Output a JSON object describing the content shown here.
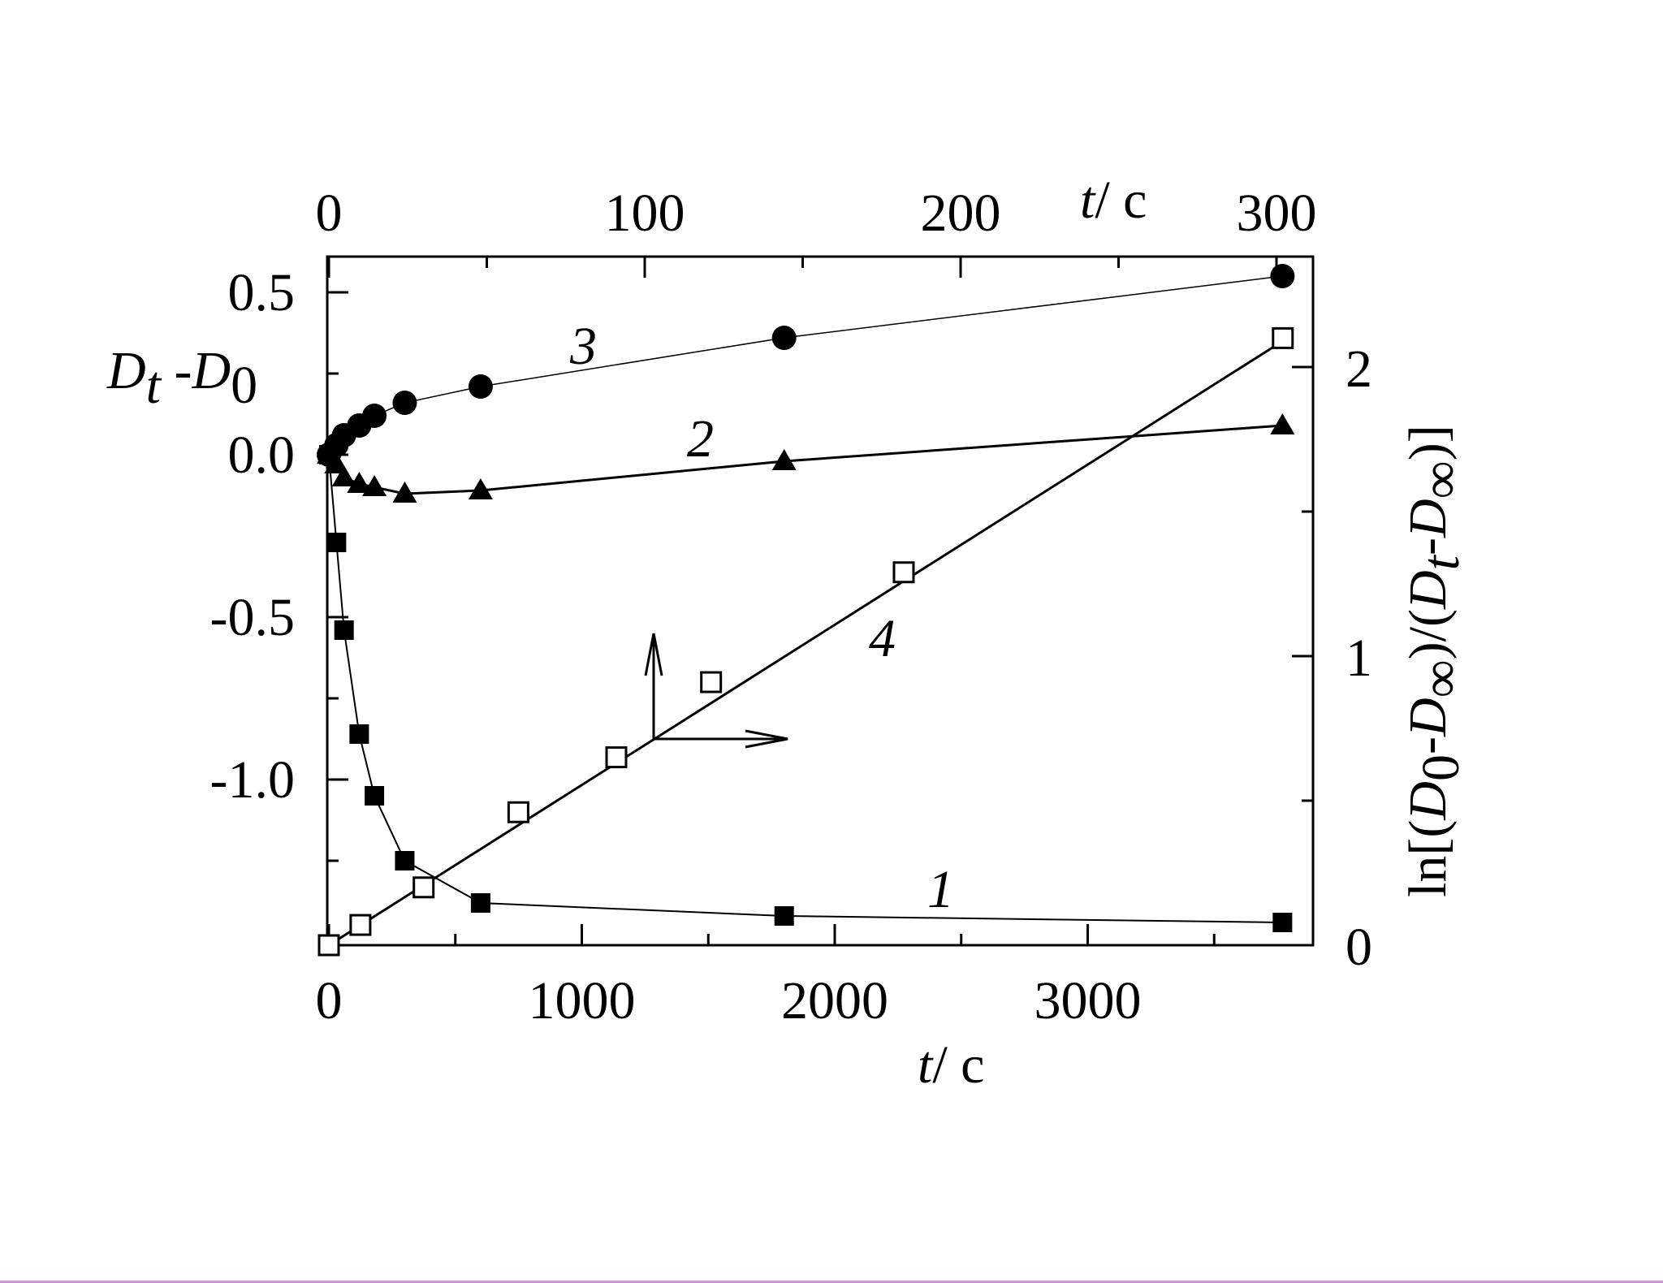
{
  "chart_data": {
    "type": "scatter",
    "title": "",
    "axes": {
      "x_bottom": {
        "label_var": "t",
        "label_unit": "/ c",
        "ticks": [
          0,
          1000,
          2000,
          3000
        ],
        "tick_labels": [
          "0",
          "1000",
          "2000",
          "3000"
        ],
        "range": [
          0,
          3900
        ]
      },
      "x_top": {
        "label_var": "t",
        "label_unit": "/ c",
        "ticks": [
          0,
          100,
          200,
          300
        ],
        "tick_labels": [
          "0",
          "100",
          "200",
          "300"
        ],
        "range": [
          0,
          312
        ]
      },
      "y_left": {
        "label_parts": [
          "D",
          "t",
          " -D",
          "0"
        ],
        "ticks": [
          0.5,
          0.0,
          -0.5,
          -1.0
        ],
        "tick_labels": [
          "0.5",
          "0.0",
          "-0.5",
          "-1.0"
        ],
        "range": [
          -1.52,
          0.6
        ]
      },
      "y_right": {
        "label_parts": [
          "ln[(",
          "D",
          "0",
          "-",
          "D",
          "∞",
          ")/(",
          "D",
          "t",
          "-",
          "D",
          "∞",
          ")]"
        ],
        "ticks": [
          0,
          1,
          2
        ],
        "tick_labels": [
          "0",
          "1",
          "2"
        ],
        "range": [
          0,
          2.38
        ]
      }
    },
    "series": [
      {
        "label": "1",
        "marker": "filled-square",
        "x_axis": "bottom",
        "y_axis": "left",
        "x": [
          0,
          30,
          60,
          120,
          180,
          300,
          600,
          1800,
          3770
        ],
        "y": [
          0.0,
          -0.27,
          -0.54,
          -0.86,
          -1.05,
          -1.25,
          -1.38,
          -1.42,
          -1.44
        ]
      },
      {
        "label": "2",
        "marker": "filled-triangle",
        "x_axis": "bottom",
        "y_axis": "left",
        "x": [
          0,
          30,
          60,
          120,
          180,
          300,
          600,
          1800,
          3770
        ],
        "y": [
          0.0,
          -0.03,
          -0.07,
          -0.09,
          -0.1,
          -0.12,
          -0.11,
          -0.02,
          0.09
        ]
      },
      {
        "label": "3",
        "marker": "filled-circle",
        "x_axis": "bottom",
        "y_axis": "left",
        "x": [
          0,
          30,
          60,
          120,
          180,
          300,
          600,
          1800,
          3770
        ],
        "y": [
          0.0,
          0.03,
          0.06,
          0.09,
          0.12,
          0.16,
          0.21,
          0.36,
          0.55
        ]
      },
      {
        "label": "4",
        "marker": "open-square",
        "x_axis": "top",
        "y_axis": "right",
        "x": [
          0,
          10,
          30,
          60,
          91,
          121,
          182,
          302
        ],
        "y": [
          0.0,
          0.07,
          0.2,
          0.46,
          0.65,
          0.91,
          1.29,
          2.1
        ]
      }
    ],
    "fit_line_4": {
      "x": [
        0,
        302
      ],
      "y": [
        0.0,
        2.09
      ]
    }
  }
}
